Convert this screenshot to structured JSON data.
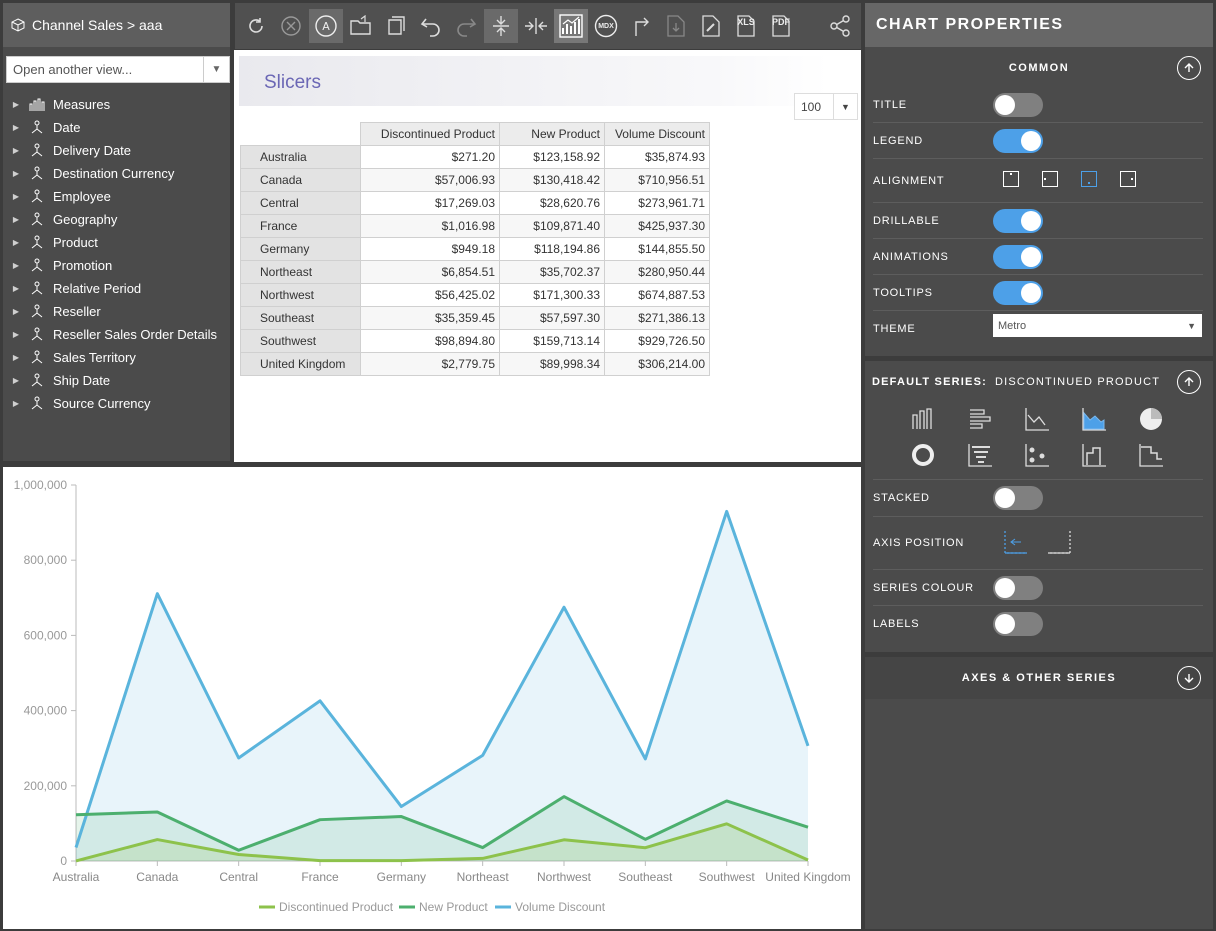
{
  "breadcrumb": "Channel Sales > aaa",
  "view_select": {
    "placeholder": "Open another view..."
  },
  "tree": [
    {
      "label": "Measures",
      "icon": "measures-icon"
    },
    {
      "label": "Date",
      "icon": "hierarchy-icon"
    },
    {
      "label": "Delivery Date",
      "icon": "hierarchy-icon"
    },
    {
      "label": "Destination Currency",
      "icon": "hierarchy-icon"
    },
    {
      "label": "Employee",
      "icon": "hierarchy-icon"
    },
    {
      "label": "Geography",
      "icon": "hierarchy-icon"
    },
    {
      "label": "Product",
      "icon": "hierarchy-icon"
    },
    {
      "label": "Promotion",
      "icon": "hierarchy-icon"
    },
    {
      "label": "Relative Period",
      "icon": "hierarchy-icon"
    },
    {
      "label": "Reseller",
      "icon": "hierarchy-icon"
    },
    {
      "label": "Reseller Sales Order Details",
      "icon": "hierarchy-icon"
    },
    {
      "label": "Sales Territory",
      "icon": "hierarchy-icon"
    },
    {
      "label": "Ship Date",
      "icon": "hierarchy-icon"
    },
    {
      "label": "Source Currency",
      "icon": "hierarchy-icon"
    }
  ],
  "toolbar": {
    "mdx": "MDX",
    "xls": "XLS",
    "pdf": "PDF"
  },
  "slicers": {
    "title": "Slicers"
  },
  "row_limit": "100",
  "grid": {
    "columns": [
      "Discontinued Product",
      "New Product",
      "Volume Discount"
    ],
    "rows": [
      {
        "label": "Australia",
        "values": [
          "$271.20",
          "$123,158.92",
          "$35,874.93"
        ]
      },
      {
        "label": "Canada",
        "values": [
          "$57,006.93",
          "$130,418.42",
          "$710,956.51"
        ]
      },
      {
        "label": "Central",
        "values": [
          "$17,269.03",
          "$28,620.76",
          "$273,961.71"
        ]
      },
      {
        "label": "France",
        "values": [
          "$1,016.98",
          "$109,871.40",
          "$425,937.30"
        ]
      },
      {
        "label": "Germany",
        "values": [
          "$949.18",
          "$118,194.86",
          "$144,855.50"
        ]
      },
      {
        "label": "Northeast",
        "values": [
          "$6,854.51",
          "$35,702.37",
          "$280,950.44"
        ]
      },
      {
        "label": "Northwest",
        "values": [
          "$56,425.02",
          "$171,300.33",
          "$674,887.53"
        ]
      },
      {
        "label": "Southeast",
        "values": [
          "$35,359.45",
          "$57,597.30",
          "$271,386.13"
        ]
      },
      {
        "label": "Southwest",
        "values": [
          "$98,894.80",
          "$159,713.14",
          "$929,726.50"
        ]
      },
      {
        "label": "United Kingdom",
        "values": [
          "$2,779.75",
          "$89,998.34",
          "$306,214.00"
        ]
      }
    ]
  },
  "chart_data": {
    "type": "area",
    "categories": [
      "Australia",
      "Canada",
      "Central",
      "France",
      "Germany",
      "Northeast",
      "Northwest",
      "Southeast",
      "Southwest",
      "United Kingdom"
    ],
    "series": [
      {
        "name": "Discontinued Product",
        "color": "#8dc24b",
        "values": [
          271.2,
          57006.93,
          17269.03,
          1016.98,
          949.18,
          6854.51,
          56425.02,
          35359.45,
          98894.8,
          2779.75
        ]
      },
      {
        "name": "New Product",
        "color": "#4caf6e",
        "values": [
          123158.92,
          130418.42,
          28620.76,
          109871.4,
          118194.86,
          35702.37,
          171300.33,
          57597.3,
          159713.14,
          89998.34
        ]
      },
      {
        "name": "Volume Discount",
        "color": "#5ab4dc",
        "values": [
          35874.93,
          710956.51,
          273961.71,
          425937.3,
          144855.5,
          280950.44,
          674887.53,
          271386.13,
          929726.5,
          306214.0
        ]
      }
    ],
    "yticks": [
      "0",
      "200,000",
      "400,000",
      "600,000",
      "800,000",
      "1,000,000"
    ],
    "ylim": [
      0,
      1000000
    ],
    "legend": "bottom-center",
    "grid": false
  },
  "props": {
    "title": "CHART PROPERTIES",
    "common": "COMMON",
    "title_label": "TITLE",
    "title_on": false,
    "legend_label": "LEGEND",
    "legend_on": true,
    "alignment_label": "ALIGNMENT",
    "drillable_label": "DRILLABLE",
    "drillable_on": true,
    "animations_label": "ANIMATIONS",
    "animations_on": true,
    "tooltips_label": "TOOLTIPS",
    "tooltips_on": true,
    "theme_label": "THEME",
    "theme_value": "Metro",
    "default_series_prefix": "DEFAULT SERIES:",
    "default_series_name": "DISCONTINUED PRODUCT",
    "stacked_label": "STACKED",
    "stacked_on": false,
    "axis_position_label": "AXIS POSITION",
    "series_colour_label": "SERIES COLOUR",
    "series_colour_on": false,
    "labels_label": "LABELS",
    "labels_on": false,
    "axes_other": "AXES & OTHER SERIES"
  }
}
